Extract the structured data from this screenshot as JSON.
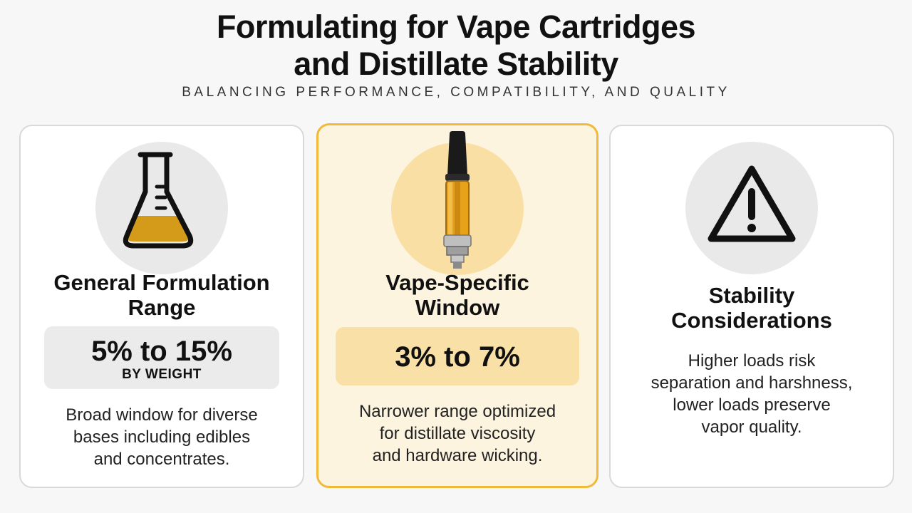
{
  "header": {
    "title_line1": "Formulating for Vape Cartridges",
    "title_line2": "and Distillate Stability",
    "subtitle": "BALANCING PERFORMANCE, COMPATIBILITY, AND QUALITY"
  },
  "cards": [
    {
      "icon": "flask-icon",
      "title_line1": "General Formulation",
      "title_line2": "Range",
      "value": "5% to 15%",
      "unit": "BY WEIGHT",
      "desc_lines": [
        "Broad window for diverse",
        "bases including edibles",
        "and concentrates."
      ]
    },
    {
      "icon": "vape-cartridge-icon",
      "title_line1": "Vape-Specific",
      "title_line2": "Window",
      "value": "3% to 7%",
      "desc_lines": [
        "Narrower range optimized",
        "for distillate viscosity",
        "and hardware wicking."
      ]
    },
    {
      "icon": "warning-triangle-icon",
      "title_line1": "Stability",
      "title_line2": "Considerations",
      "desc_lines": [
        "Higher loads risk",
        "separation and harshness,",
        "lower loads preserve",
        "vapor quality."
      ]
    }
  ],
  "colors": {
    "accent": "#f0b93a",
    "accent_fill": "#fdf4df",
    "oil": "#d49a1a"
  }
}
